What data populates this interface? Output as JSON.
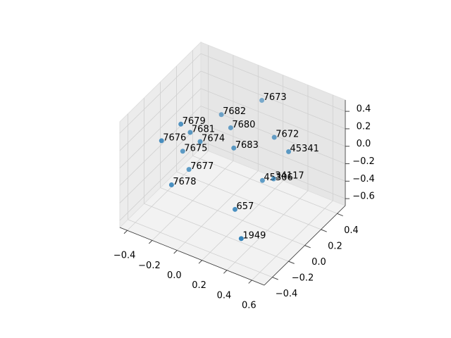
{
  "chart_data": {
    "type": "scatter3d",
    "labels": [
      "7673",
      "7682",
      "7679",
      "7681",
      "7680",
      "7674",
      "7676",
      "7672",
      "7683",
      "45341",
      "7675",
      "7677",
      "45306",
      "34117",
      "7678",
      "657",
      "1949"
    ],
    "x": [
      0.16,
      -0.1,
      -0.23,
      -0.22,
      0.04,
      -0.14,
      -0.32,
      0.39,
      0.13,
      0.57,
      -0.28,
      -0.23,
      0.36,
      0.45,
      -0.24,
      0.27,
      0.45
    ],
    "y": [
      0.3,
      0.2,
      -0.1,
      0.0,
      0.1,
      0.0,
      -0.2,
      0.1,
      0.0,
      0.0,
      0.0,
      0.0,
      0.0,
      0.0,
      -0.2,
      -0.2,
      -0.4
    ],
    "z": [
      0.4,
      0.18,
      0.27,
      0.09,
      0.2,
      0.03,
      0.12,
      0.29,
      0.11,
      0.32,
      -0.16,
      -0.34,
      -0.13,
      -0.06,
      -0.34,
      -0.33,
      -0.38
    ],
    "color": "#1f77b4",
    "xlim": [
      -0.46,
      0.7
    ],
    "ylim": [
      -0.5,
      0.5
    ],
    "zlim": [
      -0.68,
      0.53
    ],
    "xticks": [
      {
        "value": -0.4,
        "label": "−0.4"
      },
      {
        "value": -0.2,
        "label": "−0.2"
      },
      {
        "value": 0.0,
        "label": "0.0"
      },
      0.2,
      0.4,
      0.6
    ],
    "yticks": [
      {
        "value": -0.4,
        "label": "−0.4"
      },
      {
        "value": -0.2,
        "label": "−0.2"
      },
      {
        "value": 0.0,
        "label": "0.0"
      },
      0.2,
      0.4
    ],
    "zticks": [
      {
        "value": -0.6,
        "label": "−0.6"
      },
      {
        "value": -0.4,
        "label": "−0.4"
      },
      {
        "value": -0.2,
        "label": "−0.2"
      },
      {
        "value": 0.0,
        "label": "0.0"
      },
      0.2,
      0.4
    ],
    "grid": true
  }
}
